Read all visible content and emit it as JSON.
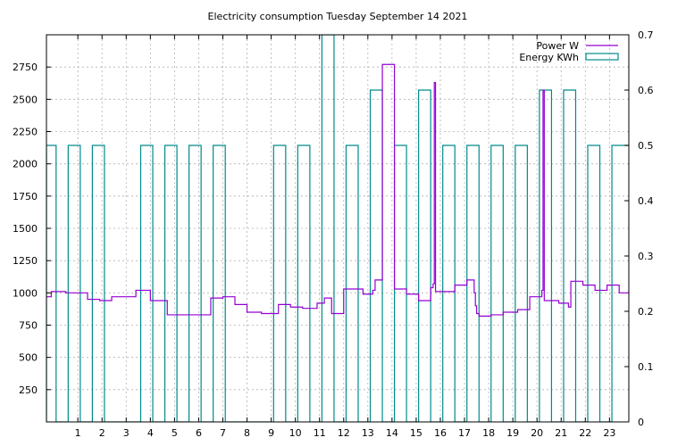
{
  "chart_data": {
    "type": "line",
    "title": "Electricity consumption Tuesday September 14 2021",
    "xlabel": "",
    "ylabel": "",
    "y2label": "",
    "xlim": [
      -0.3,
      23.8
    ],
    "ylim": [
      0,
      3000
    ],
    "y2lim": [
      0,
      0.7
    ],
    "x_ticks": [
      1,
      2,
      3,
      4,
      5,
      6,
      7,
      8,
      9,
      10,
      11,
      12,
      13,
      14,
      15,
      16,
      17,
      18,
      19,
      20,
      21,
      22,
      23
    ],
    "x_tick_labels": [
      "1",
      "2",
      "3",
      "4",
      "5",
      "6",
      "7",
      "8",
      "9",
      "10",
      "11",
      "12",
      "13",
      "14",
      "15",
      "16",
      "17",
      "18",
      "19",
      "20",
      "21",
      "22",
      "23"
    ],
    "y_ticks": [
      250,
      500,
      750,
      1000,
      1250,
      1500,
      1750,
      2000,
      2250,
      2500,
      2750
    ],
    "y_tick_labels": [
      "250",
      "500",
      "750",
      "1000",
      "1250",
      "1500",
      "1750",
      "2000",
      "2250",
      "2500",
      "2750"
    ],
    "y2_ticks": [
      0,
      0.1,
      0.2,
      0.3,
      0.4,
      0.5,
      0.6,
      0.7
    ],
    "y2_tick_labels": [
      "0",
      "0.1",
      "0.2",
      "0.3",
      "0.4",
      "0.5",
      "0.6",
      "0.7"
    ],
    "grid": true,
    "legend_position": "top-right",
    "series": [
      {
        "name": "Power W",
        "type": "step-line",
        "axis": "y",
        "color": "#9400d3",
        "x": [
          -0.3,
          -0.1,
          0.5,
          1.4,
          1.9,
          2.4,
          3.4,
          4.0,
          4.7,
          5.7,
          6.5,
          7.0,
          7.5,
          8.0,
          8.6,
          9.3,
          9.8,
          10.3,
          10.9,
          11.2,
          11.5,
          12.0,
          12.8,
          13.2,
          13.3,
          13.6,
          14.1,
          14.6,
          15.1,
          15.6,
          15.7,
          15.75,
          15.8,
          16.2,
          16.6,
          17.1,
          17.4,
          17.45,
          17.5,
          17.6,
          18.1,
          18.6,
          19.2,
          19.7,
          20.2,
          20.25,
          20.3,
          20.9,
          21.3,
          21.4,
          21.9,
          22.4,
          22.9,
          23.4,
          23.8
        ],
        "y": [
          970,
          1010,
          1000,
          950,
          940,
          970,
          1020,
          940,
          830,
          830,
          960,
          970,
          910,
          850,
          840,
          910,
          890,
          880,
          920,
          960,
          840,
          1030,
          990,
          1020,
          1100,
          2770,
          1030,
          990,
          940,
          1040,
          1070,
          2630,
          1010,
          1010,
          1060,
          1100,
          1000,
          900,
          840,
          820,
          830,
          850,
          870,
          970,
          1020,
          2570,
          940,
          920,
          890,
          1090,
          1060,
          1020,
          1060,
          1000,
          1020
        ]
      },
      {
        "name": "Energy KWh",
        "type": "step",
        "axis": "y2",
        "color": "#008b8b",
        "x": [
          -0.3,
          0.1,
          0.6,
          1.1,
          1.6,
          2.1,
          3.1,
          3.6,
          4.1,
          4.6,
          5.1,
          5.6,
          6.1,
          6.6,
          7.1,
          8.6,
          9.1,
          9.6,
          10.1,
          10.6,
          11.1,
          11.6,
          12.1,
          12.6,
          13.1,
          13.6,
          14.1,
          14.6,
          15.1,
          15.6,
          16.1,
          16.6,
          17.1,
          17.6,
          18.1,
          18.6,
          19.1,
          19.6,
          20.1,
          20.6,
          21.1,
          21.6,
          22.1,
          22.6,
          23.1
        ],
        "y": [
          0.5,
          0,
          0.5,
          0,
          0.5,
          0,
          0,
          0.5,
          0,
          0.5,
          0,
          0.5,
          0,
          0.5,
          0,
          0,
          0.5,
          0,
          0.5,
          0,
          0.7,
          0,
          0.5,
          0,
          0.6,
          0,
          0.5,
          0,
          0.6,
          0,
          0.5,
          0,
          0.5,
          0,
          0.5,
          0,
          0.5,
          0,
          0.6,
          0,
          0.6,
          0,
          0.5,
          0,
          0.5
        ]
      }
    ]
  }
}
